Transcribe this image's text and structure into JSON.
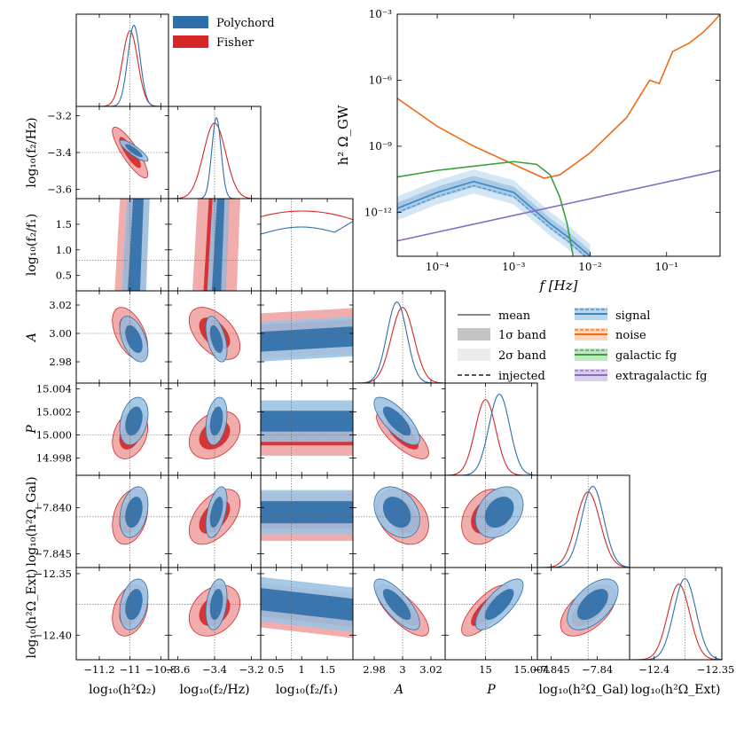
{
  "colors": {
    "polychord": "#2f6ea8",
    "polychord_light": "#9cc3e2",
    "fisher": "#d62728",
    "fisher_light": "#efa3a3",
    "signal": "#3b86c4",
    "noise": "#ef6c1a",
    "galactic": "#3aa040",
    "extragalactic": "#8a6bbf",
    "injected": "#555555"
  },
  "legend_top": [
    {
      "label": "Polychord",
      "color_key": "polychord"
    },
    {
      "label": "Fisher",
      "color_key": "fisher"
    }
  ],
  "legend_lines": {
    "styles": [
      {
        "label": "mean",
        "kind": "line"
      },
      {
        "label": "1σ band",
        "kind": "band1"
      },
      {
        "label": "2σ band",
        "kind": "band2"
      },
      {
        "label": "injected",
        "kind": "dashed"
      }
    ],
    "components": [
      {
        "label": "signal",
        "color_key": "signal"
      },
      {
        "label": "noise",
        "color_key": "noise"
      },
      {
        "label": "galactic fg",
        "color_key": "galactic"
      },
      {
        "label": "extragalactic fg",
        "color_key": "extragalactic"
      }
    ]
  },
  "chart_data": [
    {
      "type": "corner",
      "title": "",
      "parameters": [
        {
          "label": "log₁₀(h²Ω₂)",
          "ylabel": "",
          "truth": -11.0,
          "range": [
            -11.35,
            -10.75
          ],
          "ticks": [
            -11.2,
            -11.0,
            -10.8
          ],
          "tick_labels": [
            "−11.2",
            "−11",
            "−10.8"
          ]
        },
        {
          "label": "log₁₀(f₂/Hz)",
          "ylabel": "log₁₀(f₂/Hz)",
          "truth": -3.4,
          "range": [
            -3.65,
            -3.15
          ],
          "ticks": [
            -3.6,
            -3.4,
            -3.2
          ],
          "tick_labels": [
            "−3.6",
            "−3.4",
            "−3.2"
          ],
          "y_tick_labels": [
            "−3.2",
            "−3.4",
            "−3.6"
          ],
          "y_ticks": [
            -3.2,
            -3.4,
            -3.6
          ]
        },
        {
          "label": "log₁₀(f₂/f₁)",
          "ylabel": "log₁₀(f₂/f₁)",
          "truth": 0.8,
          "range": [
            0.2,
            2.0
          ],
          "ticks": [
            0.5,
            1.0,
            1.5
          ],
          "tick_labels": [
            "0.5",
            "1",
            "1.5"
          ],
          "y_ticks": [
            1.5,
            1.0,
            0.5
          ],
          "y_tick_labels": [
            "1.5",
            "1.0",
            "0.5"
          ]
        },
        {
          "label": "A",
          "ylabel": "A",
          "truth": 3.0,
          "range": [
            2.965,
            3.03
          ],
          "ticks": [
            2.98,
            3.0,
            3.02
          ],
          "tick_labels": [
            "2.98",
            "3",
            "3.02"
          ],
          "y_ticks": [
            3.02,
            3.0,
            2.98
          ],
          "y_tick_labels": [
            "3.02",
            "3.00",
            "2.98"
          ]
        },
        {
          "label": "P",
          "ylabel": "P",
          "truth": 15.0,
          "range": [
            14.9965,
            15.0045
          ],
          "ticks": [
            15.0,
            15.004
          ],
          "tick_labels": [
            "15",
            "15.004"
          ],
          "y_ticks": [
            15.004,
            15.002,
            15.0,
            14.998
          ],
          "y_tick_labels": [
            "15.004",
            "15.002",
            "15.000",
            "14.998"
          ]
        },
        {
          "label": "log₁₀(h²Ω_Gal)",
          "ylabel": "log₁₀(h²Ω_Gal)",
          "truth": -7.841,
          "range": [
            -7.8465,
            -7.8365
          ],
          "ticks": [
            -7.845,
            -7.84
          ],
          "tick_labels": [
            "−7.845",
            "−7.84"
          ],
          "y_ticks": [
            -7.84,
            -7.845
          ],
          "y_tick_labels": [
            "−7.840",
            "−7.845"
          ]
        },
        {
          "label": "log₁₀(h²Ω_Ext)",
          "ylabel": "log₁₀(h²Ω_Ext)",
          "truth": -12.375,
          "range": [
            -12.42,
            -12.345
          ],
          "ticks": [
            -12.4,
            -12.35
          ],
          "tick_labels": [
            "−12.4",
            "−12.35"
          ],
          "y_ticks": [
            -12.35,
            -12.4
          ],
          "y_tick_labels": [
            "−12.35",
            "−12.40"
          ]
        }
      ],
      "series": [
        {
          "name": "Polychord",
          "mean": [
            -10.975,
            -3.39,
            1.1,
            2.996,
            15.0012,
            -7.8405,
            -12.375
          ],
          "sigma": [
            0.04,
            0.025,
            0.5,
            0.007,
            0.0009,
            0.0012,
            0.009
          ]
        },
        {
          "name": "Fisher",
          "mean": [
            -11.0,
            -3.4,
            0.8,
            3.0,
            15.0,
            -7.841,
            -12.38
          ],
          "sigma": [
            0.05,
            0.06,
            3.0,
            0.008,
            0.0009,
            0.0013,
            0.009
          ]
        }
      ]
    },
    {
      "type": "line",
      "title": "",
      "xlabel": "f [Hz]",
      "ylabel": "h² Ω_GW",
      "xscale": "log",
      "yscale": "log",
      "xlim": [
        3e-05,
        0.5
      ],
      "ylim": [
        1e-14,
        0.001
      ],
      "x_ticks": [
        0.0001,
        0.001,
        0.01,
        0.1
      ],
      "x_tick_labels": [
        "10⁻⁴",
        "10⁻³",
        "10⁻²",
        "10⁻¹"
      ],
      "y_ticks": [
        1e-12,
        1e-09,
        1e-06,
        0.001
      ],
      "y_tick_labels": [
        "10⁻¹²",
        "10⁻⁹",
        "10⁻⁶",
        "10⁻³"
      ],
      "series": [
        {
          "name": "signal",
          "color_key": "signal",
          "points": [
            [
              3e-05,
              1.5e-12
            ],
            [
              0.0001,
              8e-12
            ],
            [
              0.0003,
              2.5e-11
            ],
            [
              0.001,
              8e-12
            ],
            [
              0.003,
              3e-13
            ],
            [
              0.005,
              8e-14
            ],
            [
              0.01,
              1e-14
            ]
          ]
        },
        {
          "name": "noise",
          "color_key": "noise",
          "points": [
            [
              3e-05,
              1.5e-07
            ],
            [
              0.0001,
              8e-09
            ],
            [
              0.0003,
              1e-09
            ],
            [
              0.001,
              1.5e-10
            ],
            [
              0.0025,
              3.5e-11
            ],
            [
              0.004,
              5e-11
            ],
            [
              0.01,
              5e-10
            ],
            [
              0.03,
              2e-08
            ],
            [
              0.06,
              1e-06
            ],
            [
              0.08,
              7e-07
            ],
            [
              0.12,
              2e-05
            ],
            [
              0.2,
              5e-05
            ],
            [
              0.3,
              0.00015
            ],
            [
              0.4,
              0.0004
            ],
            [
              0.5,
              0.001
            ]
          ]
        },
        {
          "name": "galactic fg",
          "color_key": "galactic",
          "points": [
            [
              3e-05,
              4e-11
            ],
            [
              0.0001,
              8e-11
            ],
            [
              0.001,
              2e-10
            ],
            [
              0.002,
              1.5e-10
            ],
            [
              0.003,
              5e-11
            ],
            [
              0.004,
              5e-12
            ],
            [
              0.005,
              3e-13
            ],
            [
              0.006,
              1e-14
            ]
          ]
        },
        {
          "name": "extragalactic fg",
          "color_key": "extragalactic",
          "points": [
            [
              3e-05,
              5e-14
            ],
            [
              0.5,
              8e-11
            ]
          ]
        }
      ]
    }
  ]
}
